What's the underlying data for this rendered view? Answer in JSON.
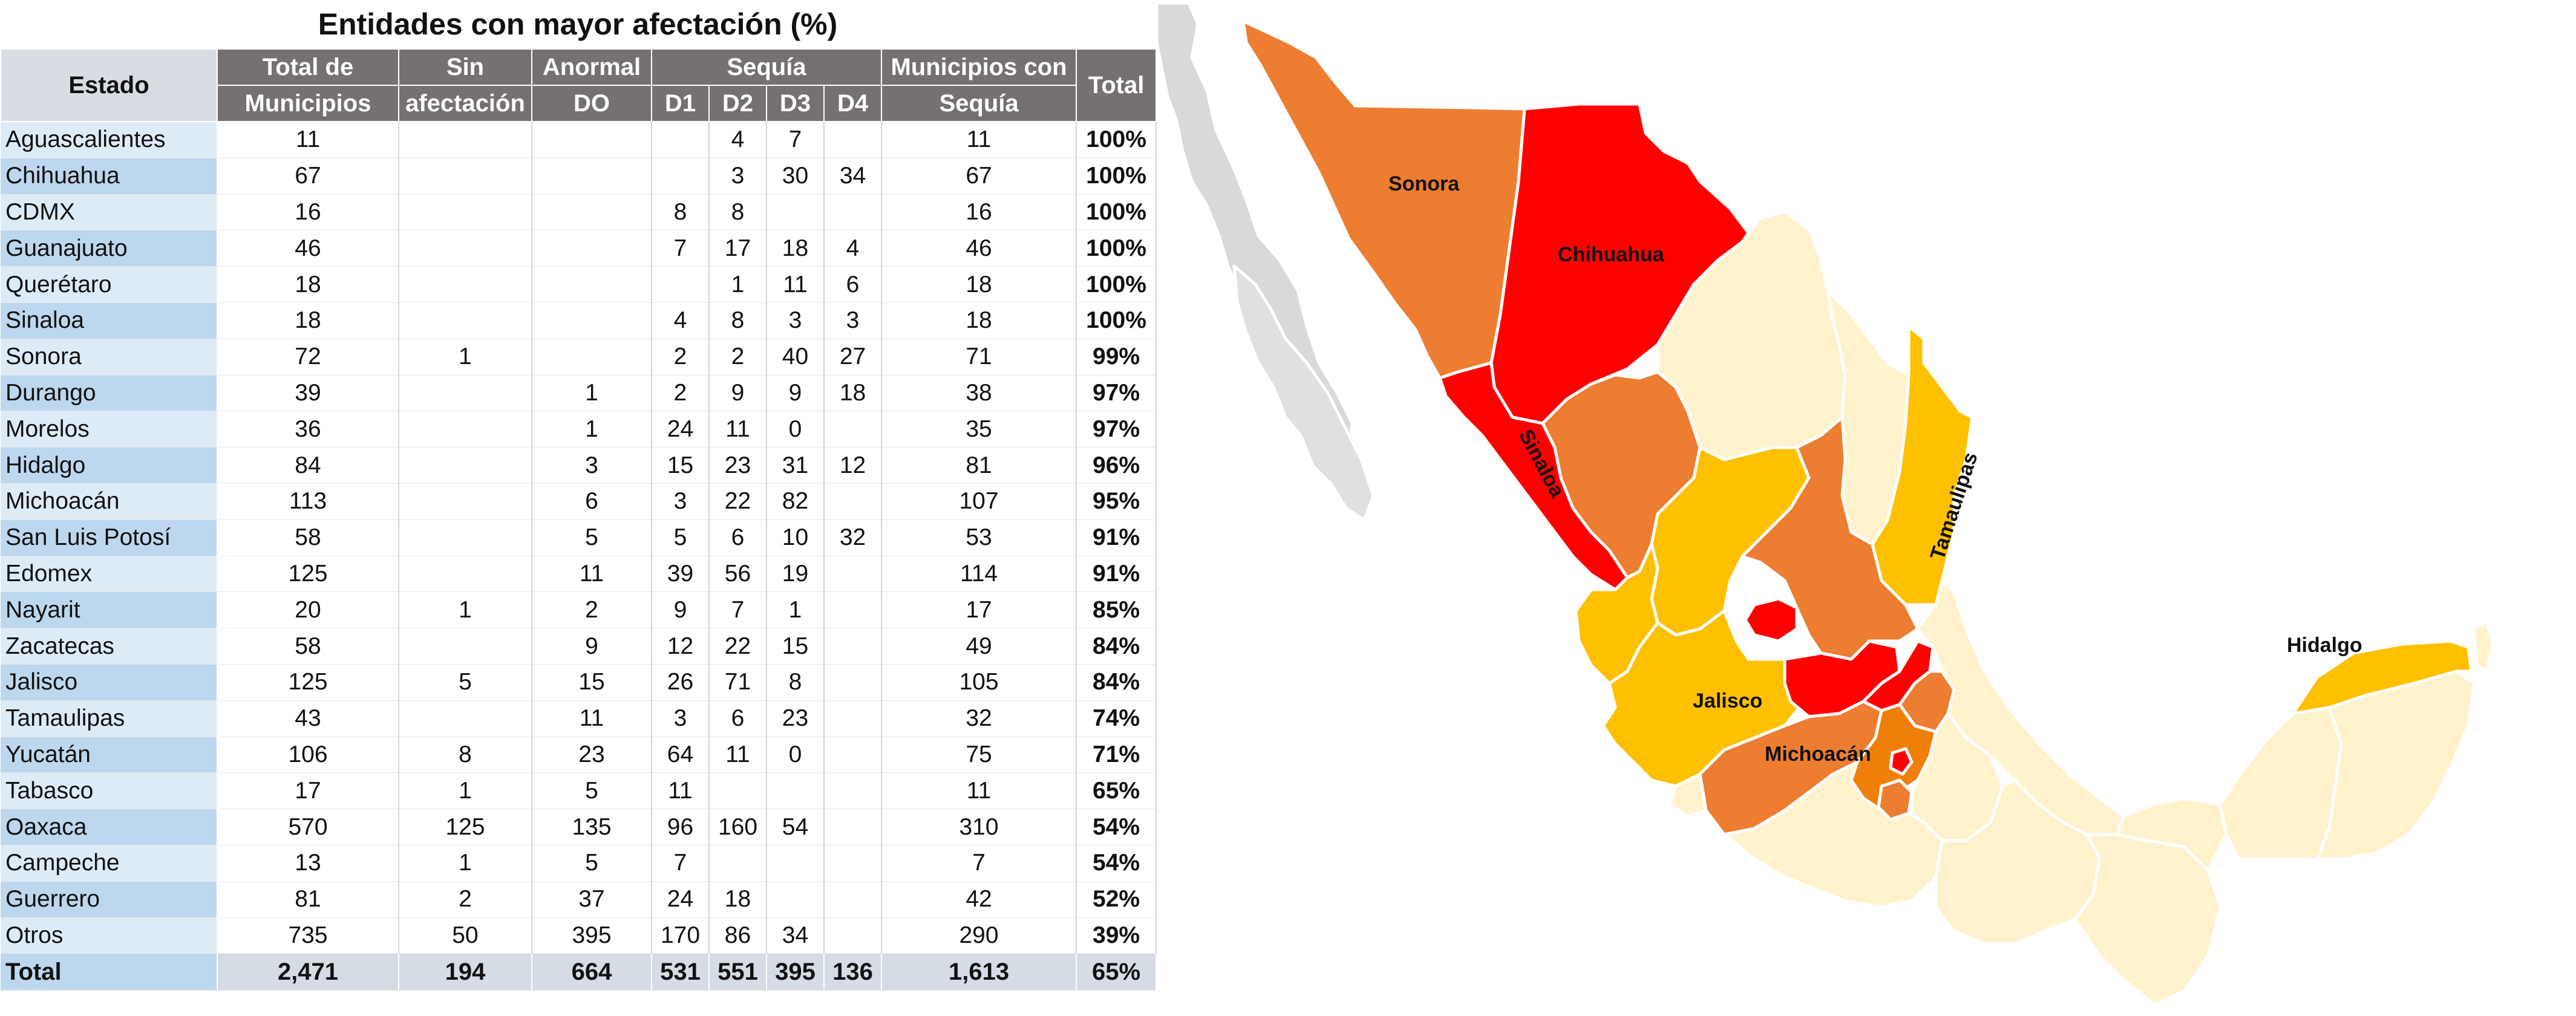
{
  "title": "Entidades con mayor afectación (%)",
  "headers": {
    "estado": "Estado",
    "total_municipios_1": "Total de",
    "total_municipios_2": "Municipios",
    "sin_afectacion_1": "Sin",
    "sin_afectacion_2": "afectación",
    "anormal_1": "Anormal",
    "anormal_2": "DO",
    "sequia": "Sequía",
    "d1": "D1",
    "d2": "D2",
    "d3": "D3",
    "d4": "D4",
    "municipios_sequia_1": "Municipios con",
    "municipios_sequia_2": "Sequía",
    "total": "Total"
  },
  "rows": [
    {
      "estado": "Aguascalientes",
      "total": "11",
      "sin": "",
      "do": "",
      "d1": "",
      "d2": "4",
      "d3": "7",
      "d4": "",
      "mun": "11",
      "pct": "100%"
    },
    {
      "estado": "Chihuahua",
      "total": "67",
      "sin": "",
      "do": "",
      "d1": "",
      "d2": "3",
      "d3": "30",
      "d4": "34",
      "mun": "67",
      "pct": "100%"
    },
    {
      "estado": "CDMX",
      "total": "16",
      "sin": "",
      "do": "",
      "d1": "8",
      "d2": "8",
      "d3": "",
      "d4": "",
      "mun": "16",
      "pct": "100%"
    },
    {
      "estado": "Guanajuato",
      "total": "46",
      "sin": "",
      "do": "",
      "d1": "7",
      "d2": "17",
      "d3": "18",
      "d4": "4",
      "mun": "46",
      "pct": "100%"
    },
    {
      "estado": "Querétaro",
      "total": "18",
      "sin": "",
      "do": "",
      "d1": "",
      "d2": "1",
      "d3": "11",
      "d4": "6",
      "mun": "18",
      "pct": "100%"
    },
    {
      "estado": "Sinaloa",
      "total": "18",
      "sin": "",
      "do": "",
      "d1": "4",
      "d2": "8",
      "d3": "3",
      "d4": "3",
      "mun": "18",
      "pct": "100%"
    },
    {
      "estado": "Sonora",
      "total": "72",
      "sin": "1",
      "do": "",
      "d1": "2",
      "d2": "2",
      "d3": "40",
      "d4": "27",
      "mun": "71",
      "pct": "99%"
    },
    {
      "estado": "Durango",
      "total": "39",
      "sin": "",
      "do": "1",
      "d1": "2",
      "d2": "9",
      "d3": "9",
      "d4": "18",
      "mun": "38",
      "pct": "97%"
    },
    {
      "estado": "Morelos",
      "total": "36",
      "sin": "",
      "do": "1",
      "d1": "24",
      "d2": "11",
      "d3": "0",
      "d4": "",
      "mun": "35",
      "pct": "97%"
    },
    {
      "estado": "Hidalgo",
      "total": "84",
      "sin": "",
      "do": "3",
      "d1": "15",
      "d2": "23",
      "d3": "31",
      "d4": "12",
      "mun": "81",
      "pct": "96%"
    },
    {
      "estado": "Michoacán",
      "total": "113",
      "sin": "",
      "do": "6",
      "d1": "3",
      "d2": "22",
      "d3": "82",
      "d4": "",
      "mun": "107",
      "pct": "95%"
    },
    {
      "estado": "San Luis Potosí",
      "total": "58",
      "sin": "",
      "do": "5",
      "d1": "5",
      "d2": "6",
      "d3": "10",
      "d4": "32",
      "mun": "53",
      "pct": "91%"
    },
    {
      "estado": "Edomex",
      "total": "125",
      "sin": "",
      "do": "11",
      "d1": "39",
      "d2": "56",
      "d3": "19",
      "d4": "",
      "mun": "114",
      "pct": "91%"
    },
    {
      "estado": "Nayarit",
      "total": "20",
      "sin": "1",
      "do": "2",
      "d1": "9",
      "d2": "7",
      "d3": "1",
      "d4": "",
      "mun": "17",
      "pct": "85%"
    },
    {
      "estado": "Zacatecas",
      "total": "58",
      "sin": "",
      "do": "9",
      "d1": "12",
      "d2": "22",
      "d3": "15",
      "d4": "",
      "mun": "49",
      "pct": "84%"
    },
    {
      "estado": "Jalisco",
      "total": "125",
      "sin": "5",
      "do": "15",
      "d1": "26",
      "d2": "71",
      "d3": "8",
      "d4": "",
      "mun": "105",
      "pct": "84%"
    },
    {
      "estado": "Tamaulipas",
      "total": "43",
      "sin": "",
      "do": "11",
      "d1": "3",
      "d2": "6",
      "d3": "23",
      "d4": "",
      "mun": "32",
      "pct": "74%"
    },
    {
      "estado": "Yucatán",
      "total": "106",
      "sin": "8",
      "do": "23",
      "d1": "64",
      "d2": "11",
      "d3": "0",
      "d4": "",
      "mun": "75",
      "pct": "71%"
    },
    {
      "estado": "Tabasco",
      "total": "17",
      "sin": "1",
      "do": "5",
      "d1": "11",
      "d2": "",
      "d3": "",
      "d4": "",
      "mun": "11",
      "pct": "65%"
    },
    {
      "estado": "Oaxaca",
      "total": "570",
      "sin": "125",
      "do": "135",
      "d1": "96",
      "d2": "160",
      "d3": "54",
      "d4": "",
      "mun": "310",
      "pct": "54%"
    },
    {
      "estado": "Campeche",
      "total": "13",
      "sin": "1",
      "do": "5",
      "d1": "7",
      "d2": "",
      "d3": "",
      "d4": "",
      "mun": "7",
      "pct": "54%"
    },
    {
      "estado": "Guerrero",
      "total": "81",
      "sin": "2",
      "do": "37",
      "d1": "24",
      "d2": "18",
      "d3": "",
      "d4": "",
      "mun": "42",
      "pct": "52%"
    },
    {
      "estado": "Otros",
      "total": "735",
      "sin": "50",
      "do": "395",
      "d1": "170",
      "d2": "86",
      "d3": "34",
      "d4": "",
      "mun": "290",
      "pct": "39%"
    }
  ],
  "total_row": {
    "estado": "Total",
    "total": "2,471",
    "sin": "194",
    "do": "664",
    "d1": "531",
    "d2": "551",
    "d3": "395",
    "d4": "136",
    "mun": "1,613",
    "pct": "65%"
  },
  "map": {
    "labels": {
      "sonora": "Sonora",
      "chihuahua": "Chihuahua",
      "sinaloa": "Sinaloa",
      "tamaulipas": "Tamaulipas",
      "jalisco": "Jalisco",
      "michoacan": "Michoacán",
      "hidalgo": "Hidalgo"
    },
    "colors": {
      "red": "#ff0000",
      "dark_orange": "#ed7d31",
      "orange": "#f07f0a",
      "yellow": "#ffc000",
      "light": "#fff2cc",
      "gray": "#d9d9d9"
    }
  }
}
